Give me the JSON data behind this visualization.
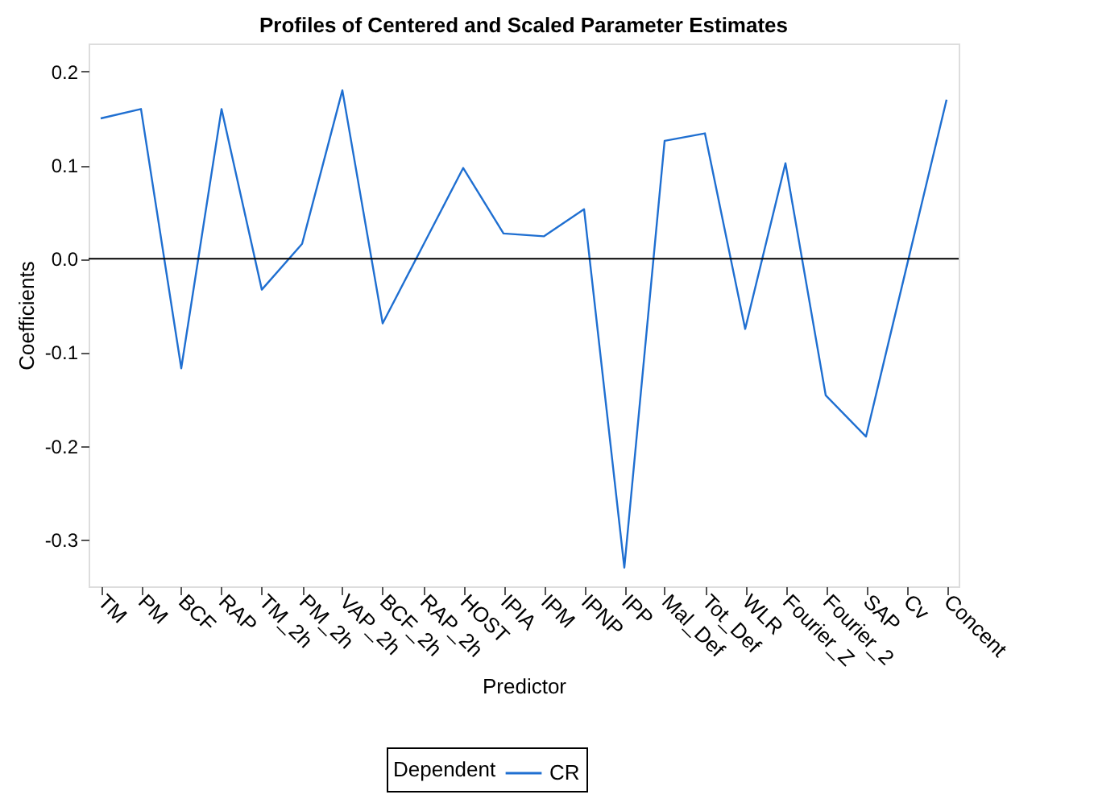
{
  "chart_data": {
    "type": "line",
    "title": "Profiles of Centered and Scaled Parameter Estimates",
    "xlabel": "Predictor",
    "ylabel": "Coefficients",
    "legend_title": "Dependent",
    "categories": [
      "TM",
      "PM",
      "BCF",
      "RAP",
      "TM_2h",
      "PM_2h",
      "VAP_2h",
      "BCF_2h",
      "RAP_2h",
      "HOST",
      "IPIA",
      "IPM",
      "IPNP",
      "IPP",
      "Mal_Def",
      "Tot_Def",
      "WLR",
      "Fourier_Z",
      "Fourier_2",
      "SAP",
      "Cv",
      "Concent"
    ],
    "series": [
      {
        "name": "CR",
        "color": "#1f6fd1",
        "values": [
          0.15,
          0.16,
          -0.117,
          0.16,
          -0.033,
          0.016,
          0.18,
          -0.069,
          0.014,
          0.097,
          0.027,
          0.024,
          0.053,
          -0.33,
          0.126,
          0.134,
          -0.075,
          0.102,
          -0.146,
          -0.19,
          -0.01,
          0.17
        ]
      }
    ],
    "ylim": [
      -0.35,
      0.23
    ],
    "yticks": [
      -0.3,
      -0.2,
      -0.1,
      {
        "value": 0,
        "label": "0.0"
      },
      0.1,
      0.2
    ],
    "ref_lines": [
      {
        "axis": "y",
        "value": 0,
        "color": "#000000"
      }
    ],
    "grid": false,
    "legend": "bottom",
    "marker": "none",
    "line_style": "solid"
  }
}
